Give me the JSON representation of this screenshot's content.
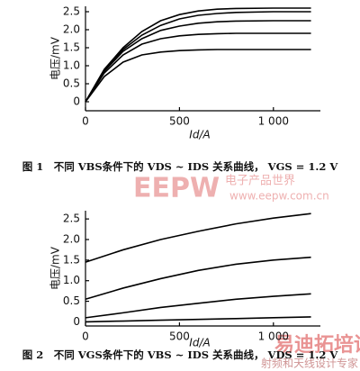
{
  "chart_data": [
    {
      "type": "line",
      "caption": "图 1　不同 VBS条件下的 VDS ~ IDS 关系曲线， VGS = 1.2 V",
      "ylabel": "电压/mV",
      "xlabel": "Id/A",
      "x": [
        0,
        100,
        200,
        300,
        400,
        500,
        600,
        700,
        800,
        1000,
        1200
      ],
      "series": [
        {
          "color": "#000000",
          "values": [
            0,
            0.9,
            1.5,
            1.95,
            2.25,
            2.42,
            2.52,
            2.57,
            2.59,
            2.6,
            2.6
          ]
        },
        {
          "color": "#000000",
          "values": [
            0,
            0.88,
            1.45,
            1.85,
            2.12,
            2.3,
            2.4,
            2.45,
            2.48,
            2.5,
            2.5
          ]
        },
        {
          "color": "#000000",
          "values": [
            0,
            0.85,
            1.4,
            1.75,
            1.98,
            2.1,
            2.18,
            2.22,
            2.24,
            2.25,
            2.25
          ]
        },
        {
          "color": "#000000",
          "values": [
            0,
            0.8,
            1.3,
            1.6,
            1.75,
            1.83,
            1.87,
            1.89,
            1.9,
            1.9,
            1.9
          ]
        },
        {
          "color": "#000000",
          "values": [
            0,
            0.7,
            1.1,
            1.3,
            1.38,
            1.42,
            1.44,
            1.45,
            1.45,
            1.45,
            1.45
          ]
        }
      ],
      "xlim": [
        0,
        1250
      ],
      "xticks": [
        0,
        500,
        {
          "value": 1000,
          "label": "1 000"
        }
      ],
      "ylim": [
        -0.25,
        2.65
      ],
      "yticks": [
        0,
        0.5,
        {
          "value": 1,
          "label": "1.0"
        },
        1.5,
        {
          "value": 2,
          "label": "2.0"
        },
        2.5
      ]
    },
    {
      "type": "line",
      "caption": "图 2　不同 VGS条件下的 VBS ~ IDS 关系曲线， VDS = 1.2 V",
      "ylabel": "电压/mV",
      "xlabel": "Id/A",
      "x": [
        0,
        200,
        400,
        600,
        800,
        1000,
        1200
      ],
      "series": [
        {
          "color": "#000000",
          "values": [
            1.45,
            1.75,
            2.0,
            2.2,
            2.38,
            2.52,
            2.63
          ]
        },
        {
          "color": "#000000",
          "values": [
            0.55,
            0.82,
            1.05,
            1.25,
            1.4,
            1.5,
            1.57
          ]
        },
        {
          "color": "#000000",
          "values": [
            0.1,
            0.22,
            0.35,
            0.45,
            0.55,
            0.62,
            0.68
          ]
        },
        {
          "color": "#000000",
          "values": [
            0,
            0.02,
            0.04,
            0.06,
            0.08,
            0.1,
            0.12
          ]
        }
      ],
      "xlim": [
        0,
        1250
      ],
      "xticks": [
        0,
        500,
        {
          "value": 1000,
          "label": "1 000"
        }
      ],
      "ylim": [
        -0.1,
        2.7
      ],
      "yticks": [
        0,
        0.5,
        {
          "value": 1,
          "label": "1.0"
        },
        1.5,
        {
          "value": 2,
          "label": "2.0"
        },
        2.5
      ]
    }
  ],
  "watermarks": [
    "EEPW",
    "电子产品世界",
    "www.eepw.com.cn",
    "易迪拓培训",
    "射频和天线设计专家"
  ]
}
